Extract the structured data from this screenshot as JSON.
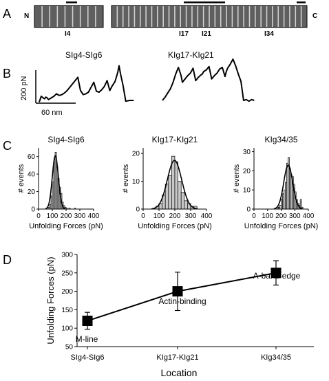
{
  "panels": {
    "A": {
      "letter": "A",
      "n_label": "N",
      "c_label": "C",
      "left_domain_count": 9,
      "right_domain_count": 34,
      "domain_labels": [
        "I4",
        "I17",
        "I21",
        "I34"
      ]
    },
    "B": {
      "letter": "B",
      "trace1_label": "SIg4-SIg6",
      "trace2_label": "KIg17-KIg21",
      "scale_force_label": "200 pN",
      "scale_length_label": "60 nm"
    },
    "C": {
      "letter": "C"
    },
    "D": {
      "letter": "D"
    }
  },
  "chart_data": [
    {
      "type": "line",
      "title": "",
      "series": [
        {
          "name": "SIg4-SIg6",
          "x": [
            0,
            3,
            6,
            8,
            10,
            12,
            14,
            18,
            22,
            26,
            30,
            34,
            38,
            42,
            46,
            50,
            54,
            58,
            62,
            66,
            70,
            74,
            78,
            82,
            86,
            90,
            94,
            98,
            102,
            106,
            110,
            114,
            118,
            120,
            122,
            126,
            130,
            136,
            142
          ],
          "y": [
            -10,
            25,
            15,
            10,
            20,
            15,
            5,
            15,
            25,
            40,
            30,
            35,
            45,
            60,
            80,
            100,
            120,
            140,
            60,
            35,
            40,
            50,
            80,
            110,
            55,
            50,
            65,
            85,
            120,
            60,
            90,
            115,
            170,
            210,
            165,
            90,
            -5,
            0,
            0
          ]
        },
        {
          "name": "KIg17-KIg21",
          "x": [
            0,
            4,
            8,
            12,
            16,
            20,
            24,
            28,
            30,
            32,
            34,
            38,
            42,
            46,
            50,
            54,
            58,
            60,
            62,
            66,
            70,
            74,
            78,
            82,
            86,
            90,
            94,
            96,
            98,
            102,
            106,
            110,
            114,
            118,
            122,
            126,
            130,
            134,
            138
          ],
          "y": [
            0,
            20,
            45,
            70,
            110,
            160,
            200,
            150,
            110,
            120,
            130,
            150,
            165,
            195,
            120,
            140,
            155,
            160,
            175,
            185,
            205,
            130,
            150,
            165,
            190,
            200,
            145,
            175,
            195,
            220,
            250,
            210,
            160,
            115,
            0,
            5,
            -5,
            5,
            0
          ]
        }
      ]
    },
    {
      "type": "bar",
      "title": "SIg4-SIg6",
      "xlabel": "Unfolding Forces (pN)",
      "ylabel": "# events",
      "xlim": [
        0,
        400
      ],
      "ylim": [
        0,
        70
      ],
      "xticks": [
        0,
        100,
        200,
        300,
        400
      ],
      "yticks": [
        0,
        20,
        40,
        60
      ],
      "bin_width": 10,
      "bin_starts": [
        70,
        80,
        90,
        100,
        110,
        120,
        130,
        140,
        150,
        160,
        170,
        180,
        190,
        200,
        210,
        220,
        230,
        240,
        250,
        260
      ],
      "values": [
        2,
        5,
        15,
        31,
        53,
        65,
        48,
        35,
        25,
        18,
        8,
        4,
        2,
        1,
        0,
        1,
        0,
        0,
        0,
        1
      ],
      "fit": {
        "type": "gaussian",
        "mean": 122,
        "sd": 22,
        "peak": 61
      }
    },
    {
      "type": "bar",
      "title": "KIg17-KIg21",
      "xlabel": "Unfolding Forces (pN)",
      "ylabel": "# events",
      "xlim": [
        0,
        400
      ],
      "ylim": [
        0,
        22
      ],
      "xticks": [
        0,
        100,
        200,
        300,
        400
      ],
      "yticks": [
        0,
        10,
        20
      ],
      "bin_width": 20,
      "bin_starts": [
        80,
        100,
        120,
        140,
        160,
        180,
        200,
        220,
        240,
        260,
        280,
        300,
        320
      ],
      "values": [
        1,
        2,
        5,
        9,
        12,
        19,
        17,
        10,
        6,
        3,
        2,
        1,
        1
      ],
      "fit": {
        "type": "gaussian",
        "mean": 198,
        "sd": 45,
        "peak": 17.5
      }
    },
    {
      "type": "bar",
      "title": "KIg34/35",
      "xlabel": "Unfolding Forces (pN)",
      "ylabel": "# events",
      "xlim": [
        0,
        400
      ],
      "ylim": [
        0,
        32
      ],
      "xticks": [
        0,
        100,
        200,
        300,
        400
      ],
      "yticks": [
        0,
        10,
        20,
        30
      ],
      "bin_width": 10,
      "bin_starts": [
        170,
        180,
        190,
        200,
        210,
        220,
        230,
        240,
        250,
        260,
        270,
        280,
        290,
        300,
        310,
        320,
        330,
        340,
        350
      ],
      "values": [
        1,
        1,
        2,
        5,
        8,
        10,
        14,
        24,
        27,
        21,
        18,
        17,
        13,
        9,
        5,
        3,
        2,
        5,
        1
      ],
      "fit": {
        "type": "gaussian",
        "mean": 252,
        "sd": 33,
        "peak": 23
      }
    },
    {
      "type": "line",
      "title": "",
      "xlabel": "Location",
      "ylabel": "Unfolding Forces (pN)",
      "categories": [
        "SIg4-SIg6",
        "KIg17-KIg21",
        "KIg34/35"
      ],
      "ylim": [
        50,
        300
      ],
      "yticks": [
        50,
        100,
        150,
        200,
        250,
        300
      ],
      "values": [
        120,
        200,
        250
      ],
      "errors": [
        23,
        52,
        33
      ],
      "point_labels": [
        "M-line",
        "Actin-binding",
        "A-band edge"
      ]
    }
  ]
}
